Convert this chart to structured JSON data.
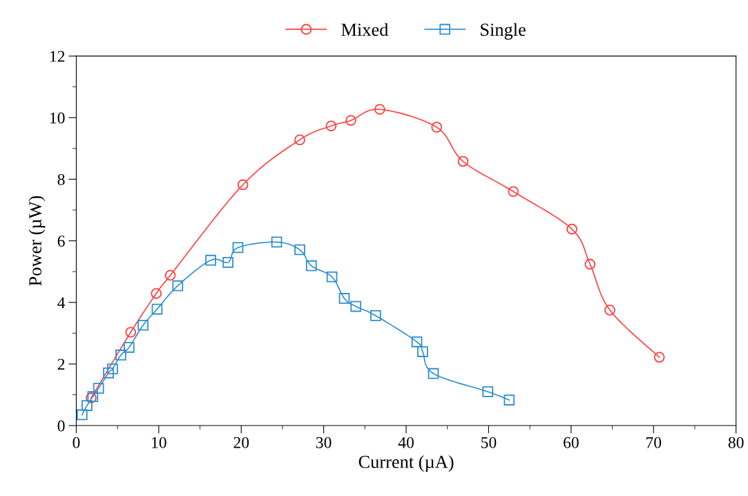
{
  "chart_data": {
    "type": "line",
    "xlabel": "Current (µA)",
    "ylabel": "Power (µW)",
    "xlim": [
      0,
      80
    ],
    "xticks": [
      0,
      10,
      20,
      30,
      40,
      50,
      60,
      70,
      80
    ],
    "ylim": [
      0,
      12
    ],
    "yticks": [
      0,
      2,
      4,
      6,
      8,
      10,
      12
    ],
    "grid": false,
    "legend": "top",
    "line_style": "solid",
    "series": [
      {
        "name": "Mixed",
        "color": "#ff4040",
        "marker": "circle",
        "x": [
          1.8,
          6.6,
          9.7,
          11.4,
          20.2,
          27.1,
          30.9,
          33.3,
          36.8,
          43.7,
          46.9,
          53.0,
          60.1,
          62.3,
          64.7,
          70.7
        ],
        "values": [
          0.9,
          3.03,
          4.29,
          4.88,
          7.82,
          9.28,
          9.73,
          9.91,
          10.27,
          9.69,
          8.58,
          7.6,
          6.38,
          5.24,
          3.75,
          2.22
        ]
      },
      {
        "name": "Single",
        "color": "#2f8fd0",
        "marker": "square",
        "x": [
          0.7,
          1.3,
          2.0,
          2.7,
          3.9,
          4.4,
          5.4,
          6.4,
          8.1,
          9.8,
          12.3,
          16.3,
          18.4,
          19.6,
          24.3,
          27.1,
          28.5,
          31.0,
          32.5,
          33.9,
          36.3,
          41.3,
          42.0,
          43.3,
          49.9,
          52.5
        ],
        "values": [
          0.35,
          0.65,
          0.94,
          1.21,
          1.71,
          1.84,
          2.29,
          2.54,
          3.26,
          3.78,
          4.54,
          5.37,
          5.3,
          5.78,
          5.96,
          5.71,
          5.19,
          4.83,
          4.13,
          3.87,
          3.57,
          2.72,
          2.4,
          1.69,
          1.1,
          0.83
        ]
      }
    ]
  }
}
